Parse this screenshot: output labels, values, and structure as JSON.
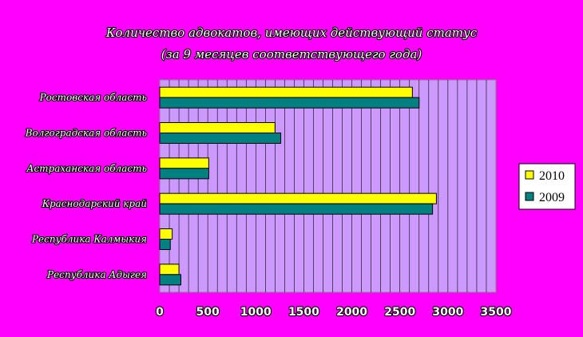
{
  "chart_data": {
    "type": "bar",
    "orientation": "horizontal",
    "title": "Количество адвокатов, имеющих действующий статус",
    "subtitle": "(за 9 месяцев соответствующего года)",
    "categories": [
      "Ростовская область",
      "Волгоградская область",
      "Астраханская область",
      "Краснодарский край",
      "Республика Калмыкия",
      "Республика Адыгея"
    ],
    "series": [
      {
        "name": "2010",
        "color": "#ffff00",
        "values": [
          2630,
          1200,
          510,
          2880,
          130,
          200
        ]
      },
      {
        "name": "2009",
        "color": "#008080",
        "values": [
          2700,
          1260,
          510,
          2840,
          110,
          220
        ]
      }
    ],
    "xlim": [
      0,
      3500
    ],
    "xticks": [
      0,
      500,
      1000,
      1500,
      2000,
      2500,
      3000,
      3500
    ],
    "grid": true,
    "plot_background": "#cc99ff",
    "legend_position": "right"
  }
}
